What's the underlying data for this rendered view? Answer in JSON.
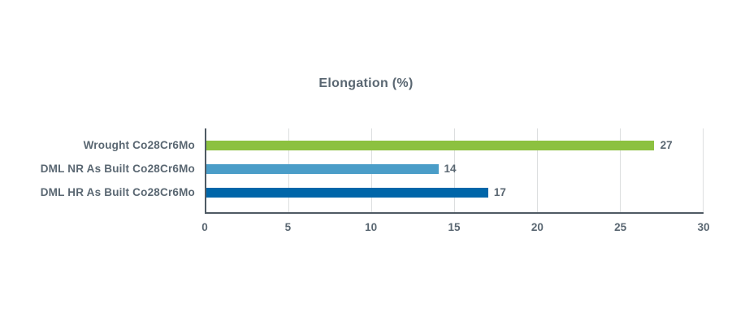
{
  "chart": {
    "title": "Elongation (%)"
  },
  "chart_data": {
    "type": "bar",
    "orientation": "horizontal",
    "title": "Elongation (%)",
    "xlabel": "",
    "ylabel": "",
    "categories": [
      "Wrought Co28Cr6Mo",
      "DML NR As Built Co28Cr6Mo",
      "DML HR As Built Co28Cr6Mo"
    ],
    "values": [
      27,
      14,
      17
    ],
    "value_labels": [
      "27",
      "14",
      "17"
    ],
    "bar_colors": [
      "#8CC140",
      "#4A9DC8",
      "#0066A9"
    ],
    "xlim": [
      0,
      30
    ],
    "xticks": [
      0,
      5,
      10,
      15,
      20,
      25,
      30
    ],
    "grid": true,
    "legend": false
  },
  "colors": {
    "text": "#5A6772",
    "axis": "#4F5A64",
    "gridline": "#DCDEDF",
    "background": "#FFFFFF",
    "bar_green": "#8CC140",
    "bar_light_blue": "#4A9DC8",
    "bar_dark_blue": "#0066A9"
  }
}
